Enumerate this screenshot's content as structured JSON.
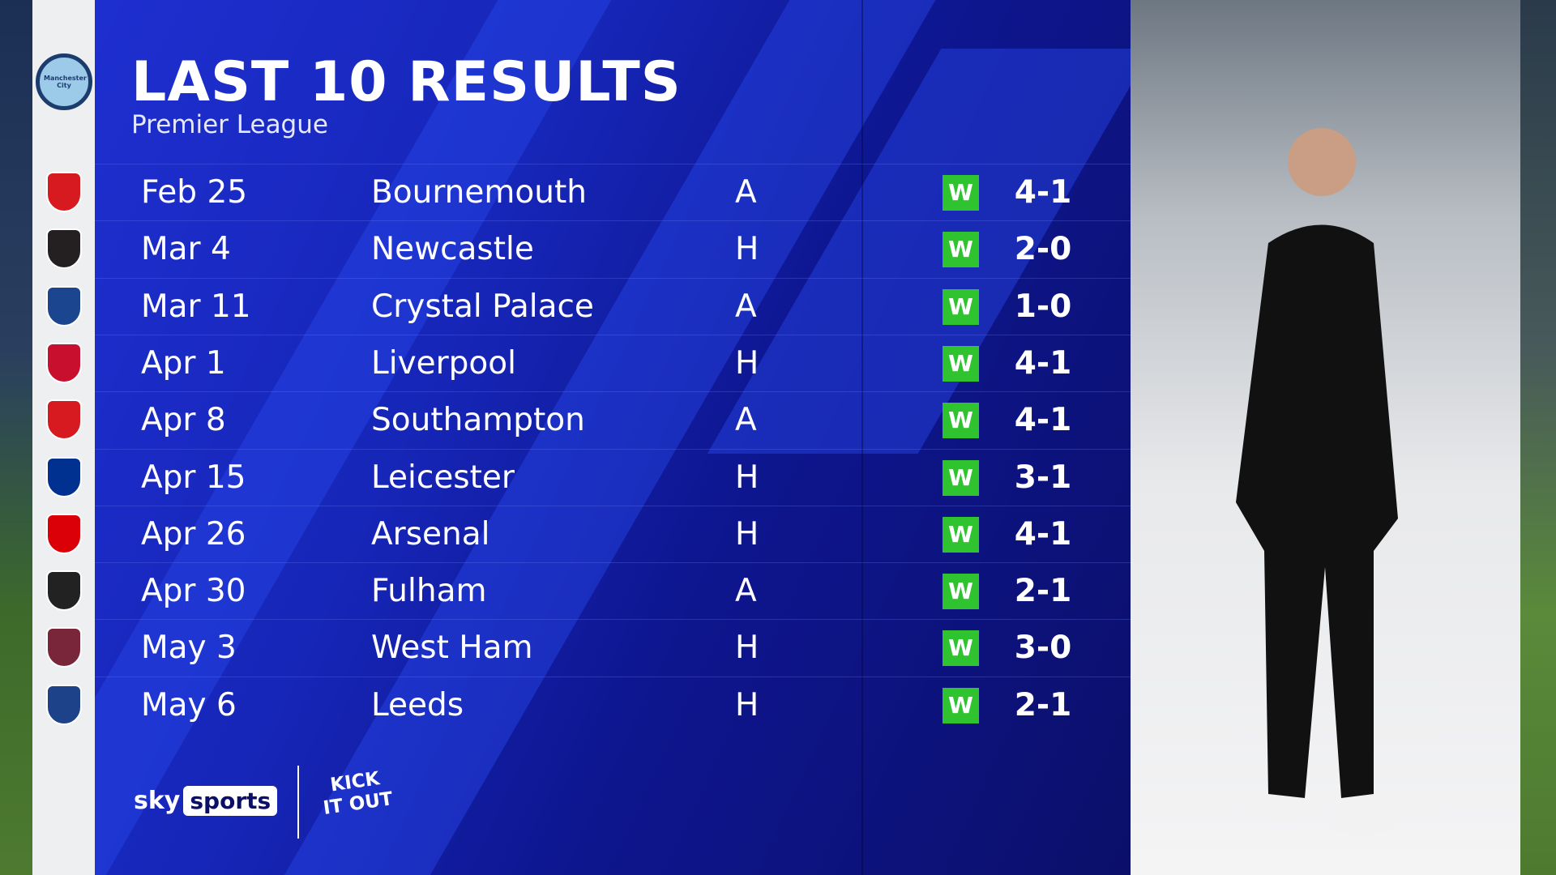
{
  "header": {
    "title": "LAST 10 RESULTS",
    "subtitle": "Premier League"
  },
  "team": {
    "name": "Manchester City",
    "crest": "man-city-crest"
  },
  "colors": {
    "panel": "#1626b8",
    "win": "#2fc42f",
    "text": "#ffffff"
  },
  "results": [
    {
      "date": "Feb 25",
      "opponent": "Bournemouth",
      "venue": "A",
      "result": "W",
      "score": "4-1",
      "crest_color": "#d71920"
    },
    {
      "date": "Mar 4",
      "opponent": "Newcastle",
      "venue": "H",
      "result": "W",
      "score": "2-0",
      "crest_color": "#241f20"
    },
    {
      "date": "Mar 11",
      "opponent": "Crystal Palace",
      "venue": "A",
      "result": "W",
      "score": "1-0",
      "crest_color": "#1b458f"
    },
    {
      "date": "Apr 1",
      "opponent": "Liverpool",
      "venue": "H",
      "result": "W",
      "score": "4-1",
      "crest_color": "#c8102e"
    },
    {
      "date": "Apr 8",
      "opponent": "Southampton",
      "venue": "A",
      "result": "W",
      "score": "4-1",
      "crest_color": "#d71920"
    },
    {
      "date": "Apr 15",
      "opponent": "Leicester",
      "venue": "H",
      "result": "W",
      "score": "3-1",
      "crest_color": "#003090"
    },
    {
      "date": "Apr 26",
      "opponent": "Arsenal",
      "venue": "H",
      "result": "W",
      "score": "4-1",
      "crest_color": "#db0007"
    },
    {
      "date": "Apr 30",
      "opponent": "Fulham",
      "venue": "A",
      "result": "W",
      "score": "2-1",
      "crest_color": "#222222"
    },
    {
      "date": "May 3",
      "opponent": "West Ham",
      "venue": "H",
      "result": "W",
      "score": "3-0",
      "crest_color": "#7a263a"
    },
    {
      "date": "May 6",
      "opponent": "Leeds",
      "venue": "H",
      "result": "W",
      "score": "2-1",
      "crest_color": "#1d428a"
    }
  ],
  "footer": {
    "brand_sky": "sky",
    "brand_sports": "sports",
    "kick_it_out": "KICK IT OUT"
  }
}
